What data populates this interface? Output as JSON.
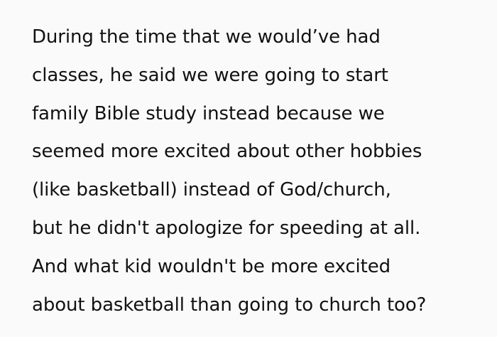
{
  "paragraph": {
    "lines": [
      "During the time that we would’ve had",
      "classes, he said we were going to start",
      "family Bible study instead because we",
      "seemed more excited about other hobbies",
      "(like basketball) instead of God/church,",
      "but he didn't apologize for speeding at all.",
      "And what kid wouldn't be more excited",
      "about basketball than going to church too?"
    ]
  }
}
